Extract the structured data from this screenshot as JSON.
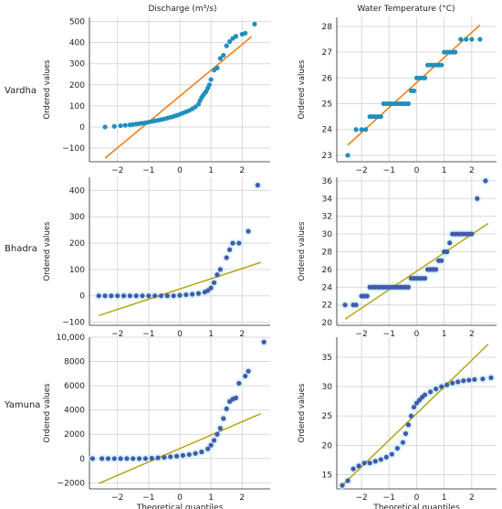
{
  "column_titles": [
    "Discharge (m$^3$/s)",
    "Water Temperature (°C)"
  ],
  "column_titles_display": [
    "Discharge (m³/s)",
    "Water Temperature (°C)"
  ],
  "row_labels": [
    "Vardha",
    "Bhadra",
    "Yamuna"
  ],
  "ylabel": "Ordered values",
  "xlabel": "Theoretical quantiles",
  "colors": {
    "points_vardha": "#1f8fbf",
    "points_other": "#4a55b0",
    "halo": "#b8f3ee",
    "fit_vardha": "#f0780a",
    "fit_other": "#b5a514",
    "grid": "#d9d9d9",
    "axis": "#222222"
  },
  "chart_data": [
    {
      "type": "scatter",
      "row": "Vardha",
      "column": "Discharge (m³/s)",
      "xlim": [
        -2.9,
        2.9
      ],
      "ylim": [
        -165,
        520
      ],
      "xticks": [
        -2,
        -1,
        0,
        1,
        2
      ],
      "yticks": [
        -100,
        0,
        100,
        200,
        300,
        400,
        500
      ],
      "ytick_labels": [
        "−100",
        "0",
        "100",
        "200",
        "300",
        "400",
        "500"
      ],
      "fit_line": [
        [
          -2.4,
          -148
        ],
        [
          2.3,
          428
        ]
      ],
      "points": [
        [
          -2.4,
          0
        ],
        [
          -2.1,
          3
        ],
        [
          -1.9,
          6
        ],
        [
          -1.75,
          8
        ],
        [
          -1.6,
          10
        ],
        [
          -1.5,
          12
        ],
        [
          -1.4,
          14
        ],
        [
          -1.3,
          16
        ],
        [
          -1.2,
          18
        ],
        [
          -1.1,
          20
        ],
        [
          -1.0,
          23
        ],
        [
          -0.9,
          26
        ],
        [
          -0.8,
          29
        ],
        [
          -0.7,
          32
        ],
        [
          -0.6,
          35
        ],
        [
          -0.5,
          38
        ],
        [
          -0.4,
          42
        ],
        [
          -0.3,
          46
        ],
        [
          -0.2,
          50
        ],
        [
          -0.1,
          55
        ],
        [
          0.0,
          60
        ],
        [
          0.1,
          66
        ],
        [
          0.2,
          72
        ],
        [
          0.3,
          78
        ],
        [
          0.4,
          86
        ],
        [
          0.5,
          95
        ],
        [
          0.6,
          108
        ],
        [
          0.65,
          125
        ],
        [
          0.7,
          140
        ],
        [
          0.75,
          150
        ],
        [
          0.8,
          160
        ],
        [
          0.85,
          170
        ],
        [
          0.9,
          185
        ],
        [
          0.95,
          200
        ],
        [
          1.0,
          225
        ],
        [
          1.1,
          270
        ],
        [
          1.2,
          280
        ],
        [
          1.3,
          325
        ],
        [
          1.4,
          340
        ],
        [
          1.5,
          385
        ],
        [
          1.6,
          405
        ],
        [
          1.7,
          420
        ],
        [
          1.8,
          430
        ],
        [
          2.0,
          440
        ],
        [
          2.1,
          445
        ],
        [
          2.4,
          488
        ]
      ]
    },
    {
      "type": "scatter",
      "row": "Vardha",
      "column": "Water Temperature (°C)",
      "xlim": [
        -2.9,
        2.9
      ],
      "ylim": [
        22.75,
        28.35
      ],
      "xticks": [
        -2,
        -1,
        0,
        1,
        2
      ],
      "yticks": [
        23,
        24,
        25,
        26,
        27,
        28
      ],
      "ytick_labels": [
        "23",
        "24",
        "25",
        "26",
        "27",
        "28"
      ],
      "fit_line": [
        [
          -2.5,
          23.4
        ],
        [
          2.3,
          28.05
        ]
      ],
      "points": [
        [
          -2.5,
          23
        ],
        [
          -2.2,
          24
        ],
        [
          -2.0,
          24
        ],
        [
          -1.85,
          24
        ],
        [
          -1.7,
          24.5
        ],
        [
          -1.6,
          24.5
        ],
        [
          -1.5,
          24.5
        ],
        [
          -1.4,
          24.5
        ],
        [
          -1.3,
          24.5
        ],
        [
          -1.2,
          25
        ],
        [
          -1.1,
          25
        ],
        [
          -1.0,
          25
        ],
        [
          -0.9,
          25
        ],
        [
          -0.8,
          25
        ],
        [
          -0.7,
          25
        ],
        [
          -0.6,
          25
        ],
        [
          -0.5,
          25
        ],
        [
          -0.4,
          25
        ],
        [
          -0.3,
          25
        ],
        [
          -0.2,
          25.5
        ],
        [
          -0.1,
          25.5
        ],
        [
          0.0,
          26
        ],
        [
          0.1,
          26
        ],
        [
          0.2,
          26
        ],
        [
          0.3,
          26
        ],
        [
          0.4,
          26.5
        ],
        [
          0.5,
          26.5
        ],
        [
          0.6,
          26.5
        ],
        [
          0.7,
          26.5
        ],
        [
          0.8,
          26.5
        ],
        [
          0.9,
          26.5
        ],
        [
          1.0,
          27
        ],
        [
          1.1,
          27
        ],
        [
          1.2,
          27
        ],
        [
          1.3,
          27
        ],
        [
          1.4,
          27
        ],
        [
          1.6,
          27.5
        ],
        [
          1.8,
          27.5
        ],
        [
          2.0,
          27.5
        ],
        [
          2.3,
          27.5
        ]
      ]
    },
    {
      "type": "scatter",
      "row": "Bhadra",
      "column": "Discharge (m³/s)",
      "xlim": [
        -2.9,
        2.9
      ],
      "ylim": [
        -112,
        450
      ],
      "xticks": [
        -2,
        -1,
        0,
        1,
        2
      ],
      "yticks": [
        -100,
        0,
        100,
        200,
        300,
        400
      ],
      "ytick_labels": [
        "−100",
        "0",
        "100",
        "200",
        "300",
        "400"
      ],
      "fit_line": [
        [
          -2.6,
          -75
        ],
        [
          2.6,
          127
        ]
      ],
      "points": [
        [
          -2.6,
          0
        ],
        [
          -2.4,
          0
        ],
        [
          -2.2,
          0
        ],
        [
          -2.0,
          0
        ],
        [
          -1.8,
          0
        ],
        [
          -1.6,
          0
        ],
        [
          -1.4,
          0
        ],
        [
          -1.2,
          0
        ],
        [
          -1.0,
          0
        ],
        [
          -0.8,
          0
        ],
        [
          -0.6,
          0
        ],
        [
          -0.4,
          0
        ],
        [
          -0.2,
          0
        ],
        [
          0.0,
          2
        ],
        [
          0.2,
          4
        ],
        [
          0.4,
          6
        ],
        [
          0.6,
          9
        ],
        [
          0.8,
          14
        ],
        [
          0.9,
          20
        ],
        [
          1.0,
          30
        ],
        [
          1.1,
          50
        ],
        [
          1.2,
          80
        ],
        [
          1.3,
          100
        ],
        [
          1.5,
          145
        ],
        [
          1.6,
          175
        ],
        [
          1.7,
          200
        ],
        [
          1.9,
          200
        ],
        [
          2.2,
          245
        ],
        [
          2.5,
          420
        ]
      ]
    },
    {
      "type": "scatter",
      "row": "Bhadra",
      "column": "Water Temperature (°C)",
      "xlim": [
        -2.9,
        2.9
      ],
      "ylim": [
        19.7,
        36.4
      ],
      "xticks": [
        -2,
        -1,
        0,
        1,
        2
      ],
      "yticks": [
        20,
        22,
        24,
        26,
        28,
        30,
        32,
        34,
        36
      ],
      "ytick_labels": [
        "20",
        "22",
        "24",
        "26",
        "28",
        "30",
        "32",
        "34",
        "36"
      ],
      "fit_line": [
        [
          -2.6,
          20.4
        ],
        [
          2.6,
          31.2
        ]
      ],
      "points": [
        [
          -2.6,
          22
        ],
        [
          -2.3,
          22
        ],
        [
          -2.2,
          22
        ],
        [
          -2.0,
          23
        ],
        [
          -1.9,
          23
        ],
        [
          -1.8,
          23
        ],
        [
          -1.7,
          24
        ],
        [
          -1.6,
          24
        ],
        [
          -1.5,
          24
        ],
        [
          -1.4,
          24
        ],
        [
          -1.3,
          24
        ],
        [
          -1.2,
          24
        ],
        [
          -1.1,
          24
        ],
        [
          -1.0,
          24
        ],
        [
          -0.9,
          24
        ],
        [
          -0.8,
          24
        ],
        [
          -0.7,
          24
        ],
        [
          -0.6,
          24
        ],
        [
          -0.5,
          24
        ],
        [
          -0.4,
          24
        ],
        [
          -0.3,
          24
        ],
        [
          -0.2,
          25
        ],
        [
          -0.1,
          25
        ],
        [
          0.0,
          25
        ],
        [
          0.1,
          25
        ],
        [
          0.2,
          25
        ],
        [
          0.3,
          25
        ],
        [
          0.4,
          26
        ],
        [
          0.5,
          26
        ],
        [
          0.6,
          26
        ],
        [
          0.7,
          26
        ],
        [
          0.8,
          27
        ],
        [
          0.9,
          27
        ],
        [
          1.0,
          28
        ],
        [
          1.1,
          28
        ],
        [
          1.2,
          29
        ],
        [
          1.3,
          30
        ],
        [
          1.4,
          30
        ],
        [
          1.5,
          30
        ],
        [
          1.6,
          30
        ],
        [
          1.7,
          30
        ],
        [
          1.8,
          30
        ],
        [
          1.9,
          30
        ],
        [
          2.0,
          30
        ],
        [
          2.2,
          34
        ],
        [
          2.5,
          36
        ]
      ]
    },
    {
      "type": "scatter",
      "row": "Yamuna",
      "column": "Discharge (m³/s)",
      "xlim": [
        -2.9,
        2.9
      ],
      "ylim": [
        -2500,
        10000
      ],
      "xticks": [
        -2,
        -1,
        0,
        1,
        2
      ],
      "yticks": [
        -2000,
        0,
        2000,
        4000,
        6000,
        8000,
        10000
      ],
      "ytick_labels": [
        "−2000",
        "0",
        "2000",
        "4000",
        "6000",
        "8000",
        "10,000"
      ],
      "fit_line": [
        [
          -2.6,
          -2050
        ],
        [
          2.6,
          3700
        ]
      ],
      "points": [
        [
          -2.8,
          0
        ],
        [
          -2.5,
          0
        ],
        [
          -2.3,
          0
        ],
        [
          -2.1,
          0
        ],
        [
          -1.9,
          0
        ],
        [
          -1.7,
          0
        ],
        [
          -1.5,
          0
        ],
        [
          -1.3,
          0
        ],
        [
          -1.1,
          0
        ],
        [
          -0.9,
          30
        ],
        [
          -0.7,
          60
        ],
        [
          -0.5,
          100
        ],
        [
          -0.3,
          150
        ],
        [
          -0.1,
          200
        ],
        [
          0.1,
          260
        ],
        [
          0.3,
          330
        ],
        [
          0.5,
          420
        ],
        [
          0.7,
          550
        ],
        [
          0.9,
          800
        ],
        [
          1.0,
          1100
        ],
        [
          1.1,
          1500
        ],
        [
          1.2,
          2000
        ],
        [
          1.3,
          2500
        ],
        [
          1.4,
          3300
        ],
        [
          1.5,
          4100
        ],
        [
          1.6,
          4700
        ],
        [
          1.7,
          4900
        ],
        [
          1.8,
          5000
        ],
        [
          1.9,
          6200
        ],
        [
          2.1,
          6800
        ],
        [
          2.2,
          7200
        ],
        [
          2.7,
          9600
        ]
      ]
    },
    {
      "type": "scatter",
      "row": "Yamuna",
      "column": "Water Temperature (°C)",
      "xlim": [
        -2.9,
        2.9
      ],
      "ylim": [
        12.6,
        38.4
      ],
      "xticks": [
        -2,
        -1,
        0,
        1,
        2
      ],
      "yticks": [
        15,
        20,
        25,
        30,
        35
      ],
      "ytick_labels": [
        "15",
        "20",
        "25",
        "30",
        "35"
      ],
      "fit_line": [
        [
          -2.7,
          13.2
        ],
        [
          2.6,
          37.2
        ]
      ],
      "points": [
        [
          -2.7,
          13.2
        ],
        [
          -2.5,
          14
        ],
        [
          -2.3,
          16
        ],
        [
          -2.1,
          16.5
        ],
        [
          -1.9,
          17
        ],
        [
          -1.7,
          17
        ],
        [
          -1.5,
          17.3
        ],
        [
          -1.3,
          17.6
        ],
        [
          -1.1,
          18
        ],
        [
          -0.9,
          18.5
        ],
        [
          -0.7,
          19.5
        ],
        [
          -0.5,
          20.5
        ],
        [
          -0.4,
          22
        ],
        [
          -0.3,
          23.5
        ],
        [
          -0.2,
          25
        ],
        [
          -0.1,
          26.5
        ],
        [
          0.0,
          27.2
        ],
        [
          0.1,
          27.7
        ],
        [
          0.2,
          28.2
        ],
        [
          0.3,
          28.6
        ],
        [
          0.5,
          29.1
        ],
        [
          0.7,
          29.6
        ],
        [
          0.9,
          30
        ],
        [
          1.1,
          30.3
        ],
        [
          1.3,
          30.6
        ],
        [
          1.5,
          30.8
        ],
        [
          1.7,
          31
        ],
        [
          1.9,
          31.1
        ],
        [
          2.1,
          31.2
        ],
        [
          2.4,
          31.3
        ],
        [
          2.7,
          31.5
        ]
      ]
    }
  ]
}
